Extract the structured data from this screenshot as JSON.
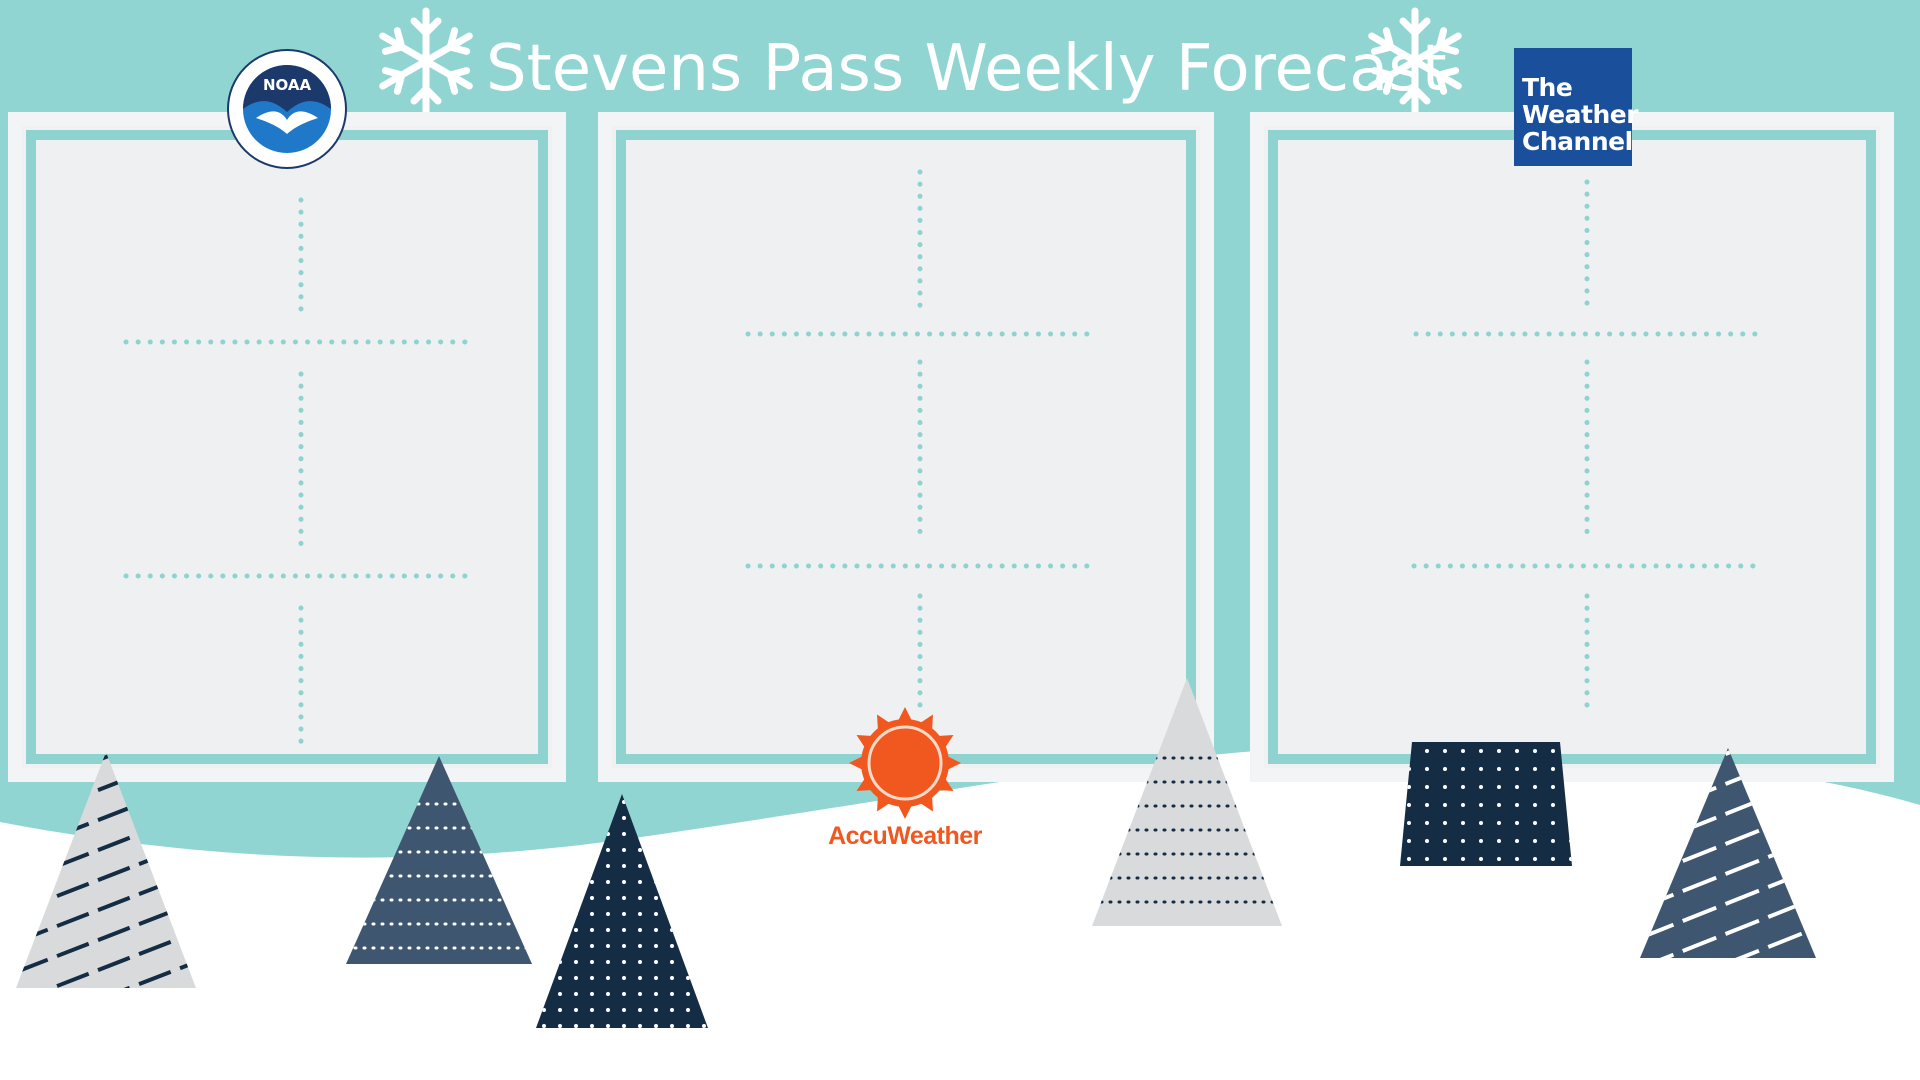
{
  "title": "Stevens Pass Weekly Forecast",
  "colors": {
    "sky": "#91d5d2",
    "snow": "#ffffff",
    "panel": "#eff1f3",
    "panel_border": "#8fd3d1",
    "dots": "#8fd3d1",
    "tree_navy": "#142d45",
    "tree_slate": "#3f5670",
    "tree_grey": "#d9dadc",
    "accuweather": "#f0581f",
    "twc_blue": "#1a4f9c",
    "noaa_blue": "#1f78c8"
  },
  "logos": {
    "noaa": {
      "text": "NOAA",
      "icon": "noaa-seal-icon"
    },
    "weather_channel": {
      "line1": "The",
      "line2": "Weather",
      "line3": "Channel",
      "icon": "weather-channel-logo"
    },
    "accuweather": {
      "text": "AccuWeather",
      "icon": "accuweather-sun-icon"
    }
  },
  "panels": [
    {
      "name": "noaa-forecast-panel"
    },
    {
      "name": "accuweather-forecast-panel"
    },
    {
      "name": "weather-channel-forecast-panel"
    }
  ],
  "decorations": [
    "snowflake-icon",
    "snowflake-icon",
    "pine-tree-icon"
  ]
}
